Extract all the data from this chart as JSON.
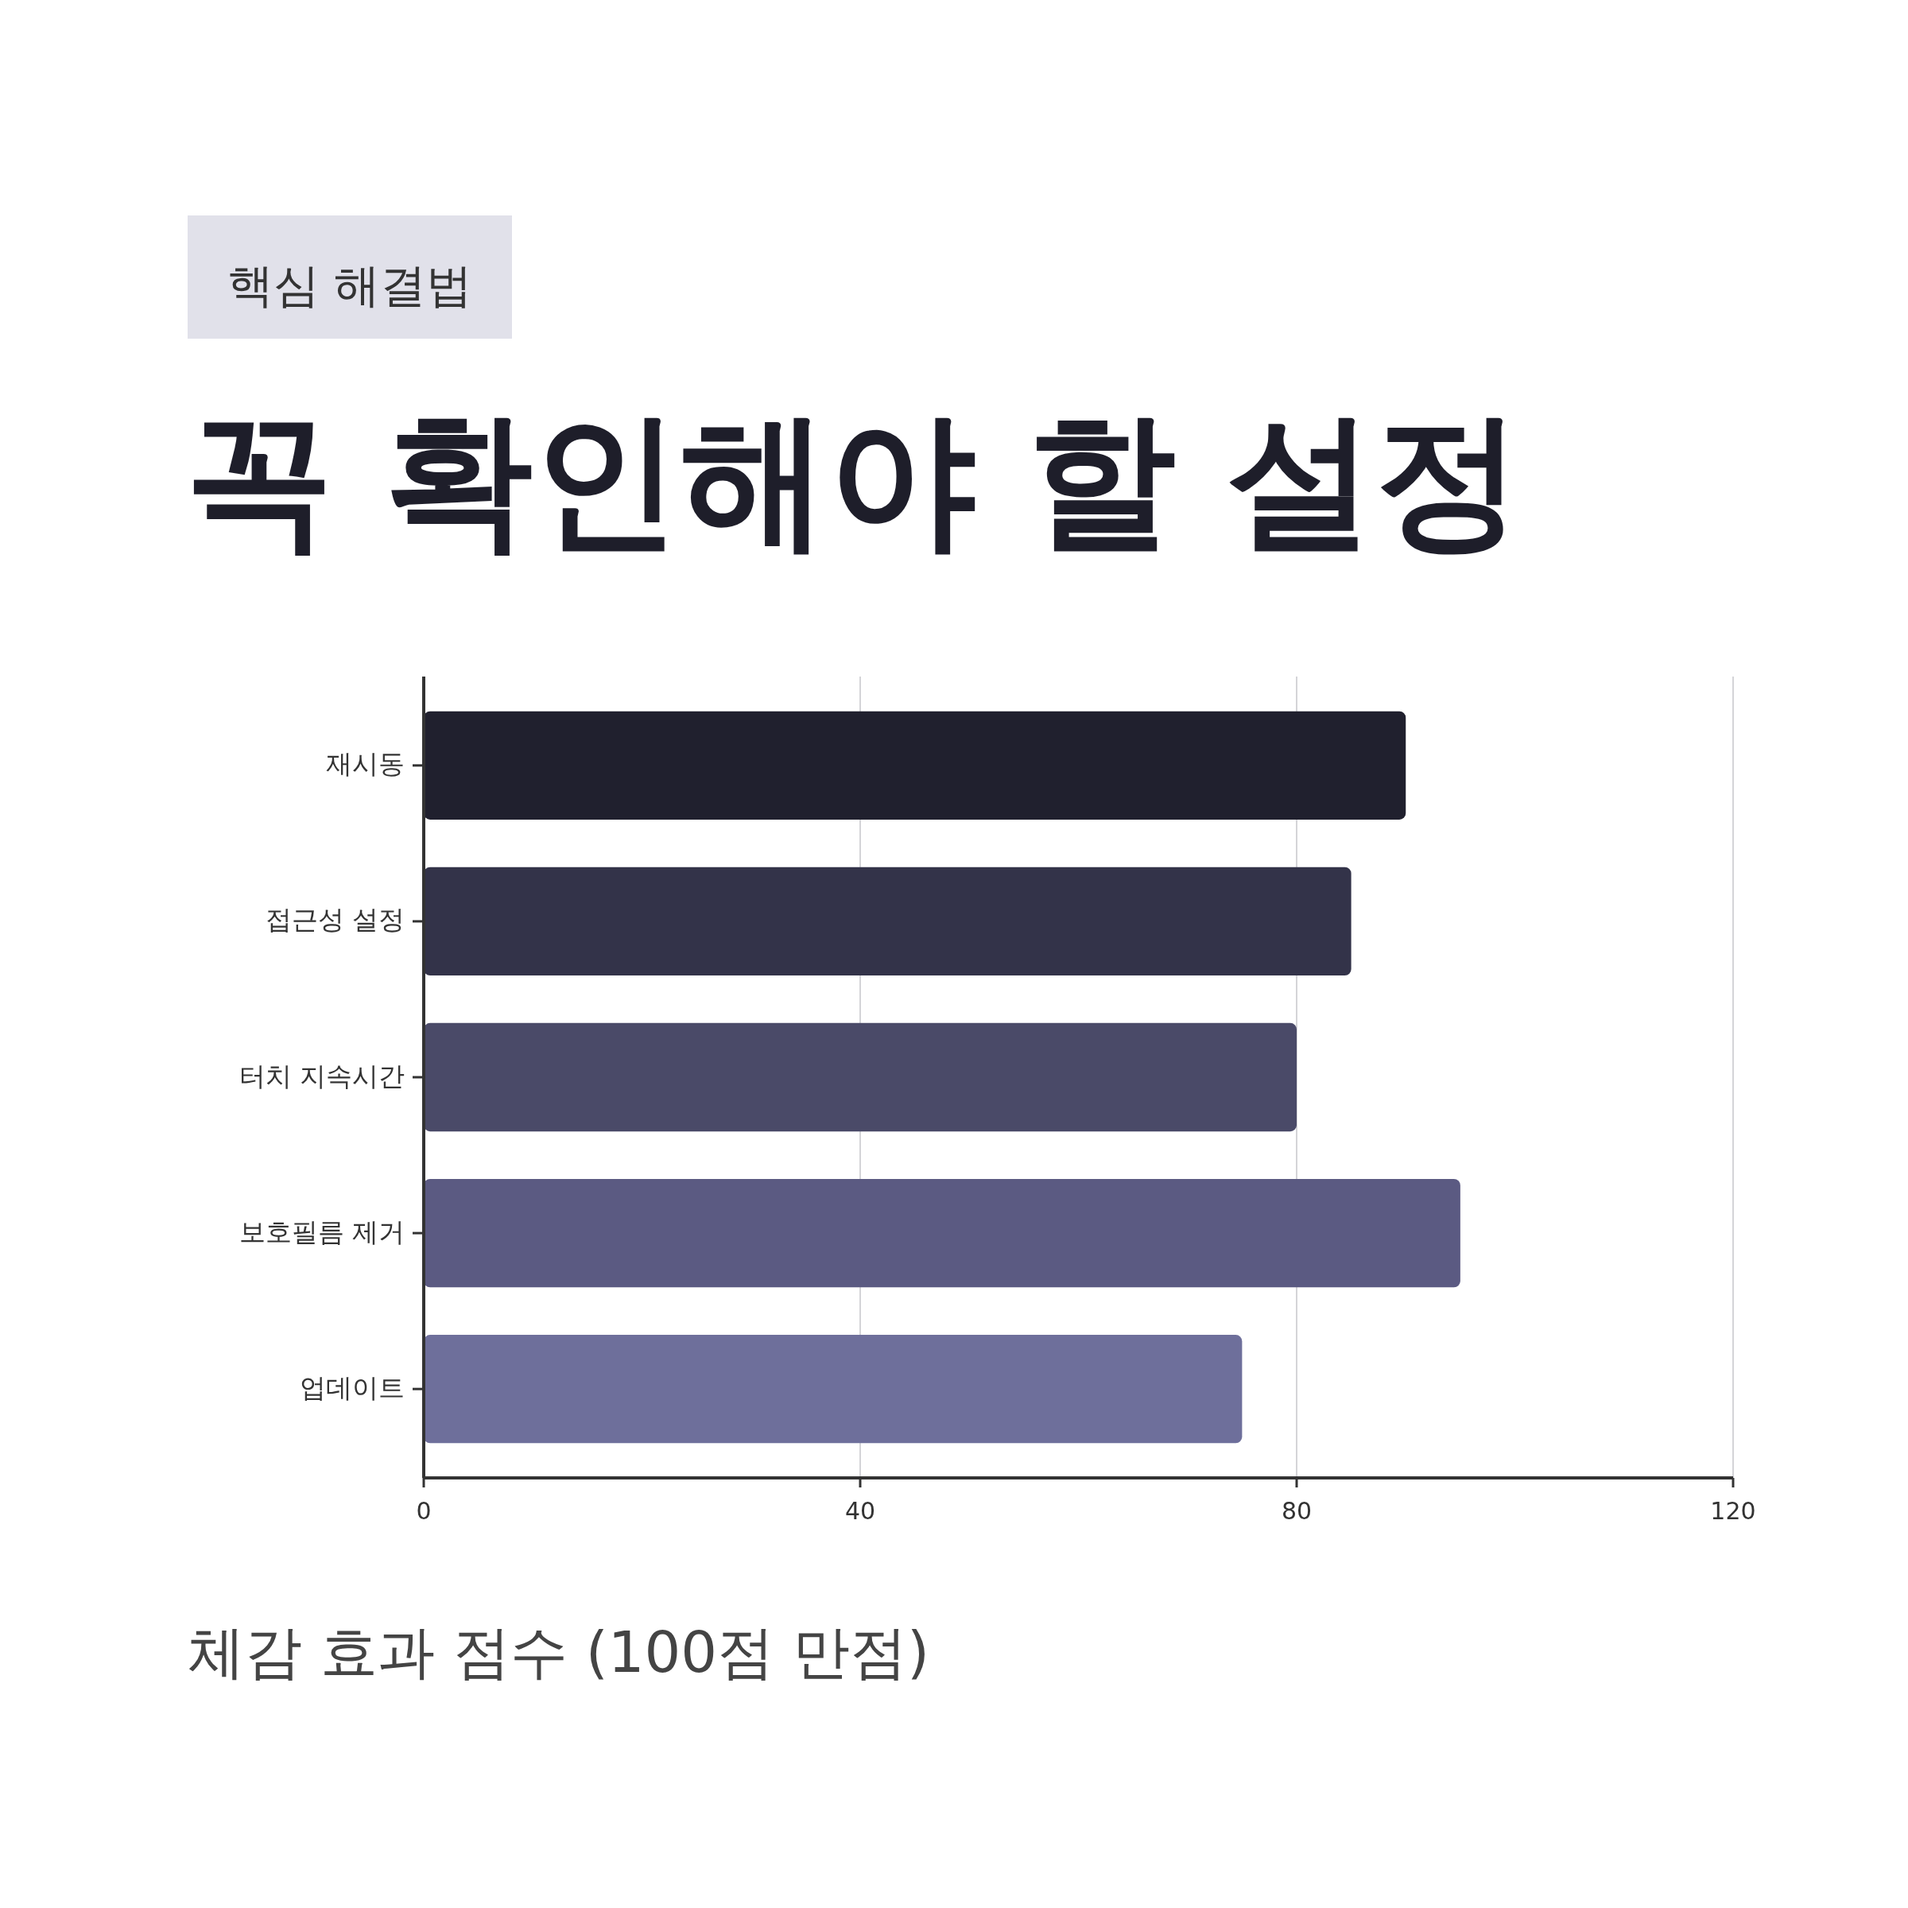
{
  "chart_data": {
    "type": "bar",
    "orientation": "horizontal",
    "subtitle": "핵심 해결법",
    "title": "꼭 확인해야 할 설정",
    "xlabel": "체감 효과 점수 (100점 만점)",
    "categories": [
      "재시동",
      "접근성 설정",
      "터치 지속시간",
      "보호필름 제거",
      "업데이트"
    ],
    "values": [
      90,
      85,
      80,
      95,
      75
    ],
    "colors": [
      "#20202e",
      "#333349",
      "#4a4a68",
      "#5b5a82",
      "#6e6f9b"
    ],
    "xlim": [
      0,
      120
    ],
    "xticks": [
      0,
      40,
      80,
      120
    ],
    "grid": "x"
  }
}
